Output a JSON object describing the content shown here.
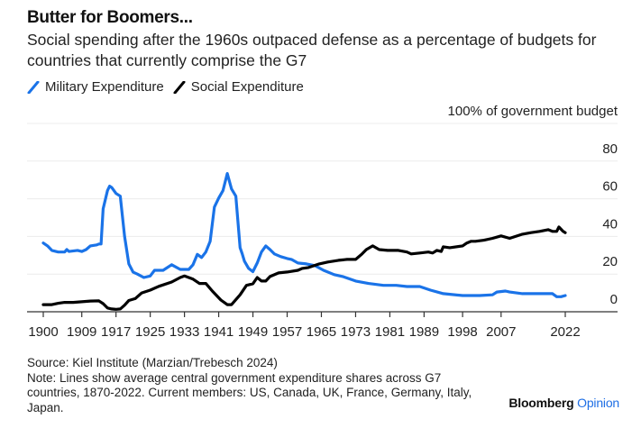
{
  "header": {
    "title": "Butter for Boomers...",
    "subtitle": "Social spending after the 1960s outpaced defense as a percentage of budgets for countries that currently comprise the G7"
  },
  "legend": [
    {
      "label": "Military Expenditure",
      "color": "#1a73e8",
      "icon": "diagonal-line-swatch"
    },
    {
      "label": "Social Expenditure",
      "color": "#000000",
      "icon": "diagonal-line-swatch"
    }
  ],
  "footer": {
    "source": "Source: Kiel Institute (Marzian/Trebesch 2024)",
    "note": "Note: Lines show average central government expenditure shares across G7 countries, 1870-2022. Current members: US, Canada, UK, France, Germany, Italy, Japan.",
    "brand_main": "Bloomberg",
    "brand_accent": "Opinion"
  },
  "chart_data": {
    "type": "line",
    "title": "Butter for Boomers...",
    "subtitle": "Social spending after the 1960s outpaced defense as a percentage of budgets for countries that currently comprise the G7",
    "xlabel": "",
    "ylabel": "100% of government budget",
    "xlim": [
      1900,
      2022
    ],
    "ylim": [
      0,
      100
    ],
    "x_ticks": [
      1900,
      1909,
      1917,
      1925,
      1933,
      1941,
      1949,
      1957,
      1965,
      1973,
      1981,
      1989,
      1998,
      2007,
      2022
    ],
    "y_ticks": [
      0,
      20,
      40,
      60,
      80
    ],
    "y_tick_labels": [
      "0",
      "20",
      "40",
      "60",
      "80"
    ],
    "y_axis_position": "right",
    "grid": true,
    "legend_position": "top-left",
    "series": [
      {
        "name": "Military Expenditure",
        "color": "#1a73e8",
        "x": [
          1900,
          1901,
          1902,
          1903.5,
          1905,
          1905.5,
          1906,
          1908,
          1909,
          1910,
          1911,
          1912.5,
          1913,
          1913.5,
          1914,
          1915,
          1915.5,
          1916,
          1917,
          1918,
          1919,
          1920,
          1921,
          1922,
          1923.5,
          1925,
          1926,
          1928,
          1930,
          1932,
          1934,
          1935,
          1936,
          1937,
          1938,
          1939,
          1940,
          1941,
          1942,
          1943,
          1944,
          1945,
          1946,
          1946.5,
          1947,
          1948,
          1949,
          1950,
          1951,
          1952,
          1953,
          1954,
          1955.5,
          1957,
          1958,
          1959.5,
          1961.5,
          1963.5,
          1965.5,
          1968,
          1970,
          1973,
          1976,
          1979.5,
          1982.5,
          1985,
          1988,
          1990.5,
          1993.5,
          1998,
          2002,
          2005,
          2006,
          2008,
          2009,
          2012,
          2016,
          2019,
          2020,
          2021,
          2022
        ],
        "values": [
          36.5,
          35,
          32.6,
          31.7,
          31.7,
          33,
          32,
          32.6,
          32,
          33,
          35,
          35.5,
          36,
          36,
          54.7,
          64.3,
          66.7,
          66,
          62.8,
          61.4,
          40,
          25.4,
          21,
          20,
          18.2,
          19,
          22,
          22,
          25,
          22.5,
          22.5,
          25,
          30.5,
          28.8,
          31.7,
          37.4,
          55.6,
          60.4,
          64.3,
          73.4,
          65.2,
          61.4,
          34,
          30.7,
          26.9,
          23,
          21.3,
          25.9,
          31.7,
          35,
          33,
          30.7,
          29.3,
          28.3,
          27.8,
          25.9,
          25.4,
          24.5,
          22,
          19.7,
          18.7,
          16.3,
          15,
          14,
          14,
          13.4,
          13.4,
          11.5,
          9.6,
          8.6,
          8.6,
          9,
          10.5,
          11,
          10.5,
          9.6,
          9.6,
          9.6,
          8,
          8,
          8.6
        ]
      },
      {
        "name": "Social Expenditure",
        "color": "#000000",
        "x": [
          1900,
          1902,
          1903.5,
          1905,
          1907,
          1909,
          1911,
          1913,
          1914,
          1915,
          1916,
          1917,
          1918,
          1919,
          1920,
          1921.5,
          1923,
          1925,
          1927,
          1930,
          1932,
          1933,
          1935,
          1936.5,
          1938,
          1939.5,
          1941.5,
          1943,
          1944,
          1946,
          1947.5,
          1949,
          1950,
          1951,
          1952,
          1953,
          1955,
          1957,
          1959.5,
          1960.5,
          1962,
          1964.5,
          1966.5,
          1969,
          1971,
          1973,
          1974.5,
          1975.5,
          1977,
          1978.5,
          1980.5,
          1983,
          1985,
          1986,
          1988,
          1990,
          1991,
          1992,
          1993,
          1993.5,
          1995,
          1998,
          1999,
          2000,
          2001,
          2003,
          2005,
          2007,
          2009,
          2012,
          2014,
          2016,
          2018,
          2019,
          2020,
          2020.5,
          2021.5,
          2022
        ],
        "values": [
          3.8,
          3.8,
          4.5,
          5,
          5,
          5.3,
          5.7,
          5.8,
          4.3,
          2,
          1.5,
          1.3,
          1.5,
          3.5,
          6,
          7,
          10,
          11.5,
          13.5,
          15.8,
          18.2,
          19,
          17.3,
          15,
          15,
          11,
          6.2,
          3.8,
          3.8,
          9,
          14,
          14.9,
          18.2,
          16.3,
          16.3,
          18.7,
          20.6,
          21.1,
          22,
          23,
          23.5,
          25.4,
          26.4,
          27.3,
          27.8,
          27.8,
          30.7,
          33,
          35,
          33,
          32.6,
          32.6,
          31.7,
          30.7,
          31.2,
          31.7,
          31.2,
          32.6,
          32,
          34.5,
          34,
          35,
          36.5,
          37.4,
          37.4,
          38,
          39,
          40.3,
          39,
          41.2,
          42,
          42.7,
          43.6,
          42.7,
          42.7,
          45,
          42.7,
          42
        ]
      }
    ],
    "source": "Source: Kiel Institute (Marzian/Trebesch 2024)",
    "note": "Note: Lines show average central government expenditure shares across G7 countries, 1870-2022. Current members: US, Canada, UK, France, Germany, Italy, Japan."
  }
}
